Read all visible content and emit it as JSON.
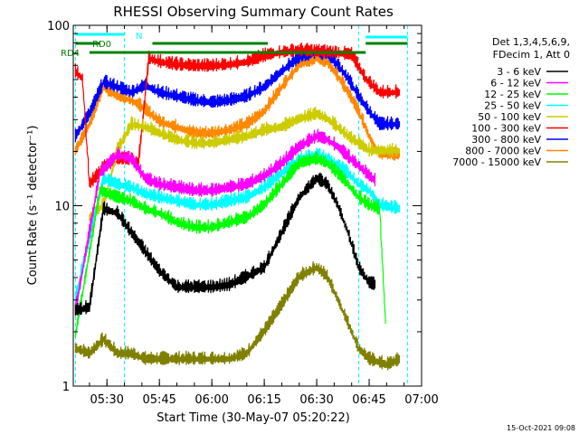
{
  "colors": {
    "background": "#ffffff",
    "axis": "#000000",
    "band_colors": [
      "#000000",
      "#ff00ff",
      "#00ff00",
      "#00ffff",
      "#cccc00",
      "#ff0000",
      "#0000ff",
      "#ff8800",
      "#808000"
    ],
    "bar_green": "#008000",
    "bar_cyan": "#00ffff",
    "event_line": "#00ffff"
  },
  "chart_data": {
    "type": "line",
    "title": "RHESSI Observing Summary Count Rates",
    "xlabel": "Start Time (30-May-07 05:20:22)",
    "ylabel": "Count Rate (s⁻¹ detector⁻¹)",
    "y_scale": "log",
    "ylim": [
      1,
      100
    ],
    "xlim": [
      "05:20:22",
      "07:00"
    ],
    "x_ticks": [
      "05:30",
      "05:45",
      "06:00",
      "06:15",
      "06:30",
      "06:45",
      "07:00"
    ],
    "y_ticks": [
      "1",
      "10",
      "100"
    ],
    "legend_header": [
      "Det 1,3,4,5,6,9,",
      "FDecim 1, Att 0"
    ],
    "legend_position": "right",
    "grid": false,
    "series": [
      {
        "name": "3 - 6 keV",
        "color": "#000000",
        "points": [
          [
            "05:21",
            2.6
          ],
          [
            "05:25",
            2.7
          ],
          [
            "05:29",
            9.5
          ],
          [
            "05:33",
            9
          ],
          [
            "05:37",
            7
          ],
          [
            "05:41",
            5.5
          ],
          [
            "05:45",
            4.3
          ],
          [
            "05:50",
            3.5
          ],
          [
            "05:55",
            3.5
          ],
          [
            "06:00",
            3.5
          ],
          [
            "06:05",
            3.6
          ],
          [
            "06:10",
            4
          ],
          [
            "06:15",
            4.5
          ],
          [
            "06:20",
            7
          ],
          [
            "06:25",
            11
          ],
          [
            "06:30",
            14
          ],
          [
            "06:33",
            13
          ],
          [
            "06:36",
            10
          ],
          [
            "06:39",
            7
          ],
          [
            "06:42",
            4.5
          ],
          [
            "06:45",
            3.7
          ],
          [
            "06:47",
            3.6
          ]
        ]
      },
      {
        "name": "6 - 12 keV",
        "color": "#ff00ff",
        "points": [
          [
            "05:21",
            2.6
          ],
          [
            "05:28",
            15
          ],
          [
            "05:33",
            19
          ],
          [
            "05:37",
            18
          ],
          [
            "05:41",
            14
          ],
          [
            "05:45",
            13
          ],
          [
            "05:50",
            12.5
          ],
          [
            "05:55",
            12
          ],
          [
            "06:00",
            12
          ],
          [
            "06:05",
            12.5
          ],
          [
            "06:10",
            13
          ],
          [
            "06:15",
            14.5
          ],
          [
            "06:20",
            17
          ],
          [
            "06:25",
            21
          ],
          [
            "06:30",
            24
          ],
          [
            "06:33",
            23
          ],
          [
            "06:36",
            21
          ],
          [
            "06:39",
            18.5
          ],
          [
            "06:42",
            16.5
          ],
          [
            "06:45",
            14.5
          ],
          [
            "06:47",
            13.5
          ]
        ]
      },
      {
        "name": "12 - 25 keV",
        "color": "#00ff00",
        "points": [
          [
            "05:21",
            1.9
          ],
          [
            "05:28",
            12
          ],
          [
            "05:33",
            11
          ],
          [
            "05:37",
            10.5
          ],
          [
            "05:41",
            9.5
          ],
          [
            "05:45",
            9
          ],
          [
            "05:50",
            8
          ],
          [
            "05:55",
            7.5
          ],
          [
            "06:00",
            7.5
          ],
          [
            "06:05",
            8
          ],
          [
            "06:10",
            8.5
          ],
          [
            "06:15",
            10
          ],
          [
            "06:20",
            13
          ],
          [
            "06:25",
            17
          ],
          [
            "06:30",
            18
          ],
          [
            "06:33",
            17
          ],
          [
            "06:36",
            15
          ],
          [
            "06:39",
            13
          ],
          [
            "06:42",
            11
          ],
          [
            "06:45",
            10
          ],
          [
            "06:48",
            9.5
          ],
          [
            "06:50",
            1.7
          ]
        ]
      },
      {
        "name": "25 - 50 keV",
        "color": "#00ffff",
        "points": [
          [
            "05:21",
            3.0
          ],
          [
            "05:23",
            4.5
          ],
          [
            "05:29",
            14
          ],
          [
            "05:33",
            13
          ],
          [
            "05:37",
            12.5
          ],
          [
            "05:41",
            11.5
          ],
          [
            "05:45",
            11
          ],
          [
            "05:50",
            10.5
          ],
          [
            "05:55",
            10
          ],
          [
            "06:00",
            10
          ],
          [
            "06:05",
            10.5
          ],
          [
            "06:10",
            11
          ],
          [
            "06:15",
            12.5
          ],
          [
            "06:20",
            15
          ],
          [
            "06:25",
            18
          ],
          [
            "06:30",
            19
          ],
          [
            "06:33",
            18
          ],
          [
            "06:36",
            16.5
          ],
          [
            "06:39",
            15
          ],
          [
            "06:42",
            13
          ],
          [
            "06:45",
            12
          ],
          [
            "06:48",
            10
          ],
          [
            "06:54",
            9.5
          ]
        ]
      },
      {
        "name": "50 - 100 keV",
        "color": "#cccc00",
        "points": [
          [
            "05:25",
            8.5
          ],
          [
            "05:29",
            10
          ],
          [
            "05:33",
            20
          ],
          [
            "05:37",
            28
          ],
          [
            "05:41",
            27
          ],
          [
            "05:45",
            25
          ],
          [
            "05:50",
            23
          ],
          [
            "05:55",
            22
          ],
          [
            "06:00",
            22
          ],
          [
            "06:05",
            23
          ],
          [
            "06:10",
            24
          ],
          [
            "06:15",
            26
          ],
          [
            "06:20",
            27
          ],
          [
            "06:25",
            30
          ],
          [
            "06:30",
            32
          ],
          [
            "06:33",
            30
          ],
          [
            "06:36",
            27
          ],
          [
            "06:39",
            24
          ],
          [
            "06:42",
            22
          ],
          [
            "06:45",
            20
          ],
          [
            "06:50",
            20
          ],
          [
            "06:54",
            20
          ]
        ]
      },
      {
        "name": "100 - 300 keV",
        "color": "#ff0000",
        "points": [
          [
            "05:21",
            55
          ],
          [
            "05:23",
            50
          ],
          [
            "05:25",
            13
          ],
          [
            "05:29",
            16
          ],
          [
            "05:33",
            18
          ],
          [
            "05:37",
            18
          ],
          [
            "05:39",
            17
          ],
          [
            "05:42",
            65
          ],
          [
            "05:45",
            62
          ],
          [
            "05:50",
            60
          ],
          [
            "05:55",
            59
          ],
          [
            "06:00",
            59
          ],
          [
            "06:05",
            60
          ],
          [
            "06:10",
            62
          ],
          [
            "06:14",
            66
          ],
          [
            "06:16",
            68
          ],
          [
            "06:20",
            70
          ],
          [
            "06:25",
            72
          ],
          [
            "06:30",
            71
          ],
          [
            "06:35",
            70
          ],
          [
            "06:40",
            68
          ],
          [
            "06:44",
            50
          ],
          [
            "06:48",
            42
          ],
          [
            "06:54",
            42
          ]
        ]
      },
      {
        "name": "300 - 800 keV",
        "color": "#0000ff",
        "points": [
          [
            "05:21",
            24
          ],
          [
            "05:25",
            32
          ],
          [
            "05:29",
            48
          ],
          [
            "05:33",
            45
          ],
          [
            "05:37",
            42
          ],
          [
            "05:41",
            46
          ],
          [
            "05:45",
            42
          ],
          [
            "05:50",
            40
          ],
          [
            "05:55",
            38
          ],
          [
            "06:00",
            37
          ],
          [
            "06:05",
            38
          ],
          [
            "06:10",
            40
          ],
          [
            "06:15",
            45
          ],
          [
            "06:20",
            55
          ],
          [
            "06:25",
            66
          ],
          [
            "06:30",
            70
          ],
          [
            "06:33",
            68
          ],
          [
            "06:36",
            60
          ],
          [
            "06:39",
            50
          ],
          [
            "06:42",
            40
          ],
          [
            "06:45",
            33
          ],
          [
            "06:48",
            28
          ],
          [
            "06:54",
            28
          ]
        ]
      },
      {
        "name": "800 - 7000 keV",
        "color": "#ff8800",
        "points": [
          [
            "05:21",
            20
          ],
          [
            "05:25",
            28
          ],
          [
            "05:29",
            45
          ],
          [
            "05:33",
            40
          ],
          [
            "05:37",
            38
          ],
          [
            "05:41",
            34
          ],
          [
            "05:45",
            29
          ],
          [
            "05:50",
            27
          ],
          [
            "05:55",
            25
          ],
          [
            "06:00",
            25
          ],
          [
            "06:05",
            26
          ],
          [
            "06:10",
            28
          ],
          [
            "06:15",
            33
          ],
          [
            "06:20",
            45
          ],
          [
            "06:25",
            60
          ],
          [
            "06:30",
            65
          ],
          [
            "06:33",
            62
          ],
          [
            "06:36",
            52
          ],
          [
            "06:39",
            42
          ],
          [
            "06:42",
            33
          ],
          [
            "06:45",
            24
          ],
          [
            "06:48",
            19
          ],
          [
            "06:54",
            19
          ]
        ]
      },
      {
        "name": "7000 - 15000 keV",
        "color": "#808000",
        "points": [
          [
            "05:21",
            1.6
          ],
          [
            "05:25",
            1.5
          ],
          [
            "05:29",
            1.8
          ],
          [
            "05:33",
            1.5
          ],
          [
            "05:37",
            1.5
          ],
          [
            "05:41",
            1.4
          ],
          [
            "05:45",
            1.4
          ],
          [
            "05:50",
            1.4
          ],
          [
            "05:55",
            1.4
          ],
          [
            "06:00",
            1.4
          ],
          [
            "06:05",
            1.4
          ],
          [
            "06:10",
            1.5
          ],
          [
            "06:15",
            2.0
          ],
          [
            "06:20",
            2.8
          ],
          [
            "06:25",
            4.0
          ],
          [
            "06:30",
            4.5
          ],
          [
            "06:33",
            4.0
          ],
          [
            "06:36",
            3.0
          ],
          [
            "06:39",
            2.2
          ],
          [
            "06:42",
            1.6
          ],
          [
            "06:45",
            1.4
          ],
          [
            "06:50",
            1.3
          ],
          [
            "06:54",
            1.4
          ]
        ]
      }
    ],
    "flag_bars": [
      {
        "label": "RD0",
        "color": "#00ffff",
        "start": "05:21",
        "end": "05:35"
      },
      {
        "label": "",
        "color": "#008000",
        "start": "05:21",
        "end": "05:28"
      },
      {
        "label": "",
        "color": "#008000",
        "start": "05:43",
        "end": "06:16"
      },
      {
        "label": "",
        "color": "#00ffff",
        "start": "06:44",
        "end": "06:56"
      },
      {
        "label": "",
        "color": "#008000",
        "start": "06:44",
        "end": "06:56"
      },
      {
        "label": "RD4",
        "color": "#008000",
        "start": "05:25",
        "end": "06:44"
      }
    ],
    "flag_labels": {
      "rd0": "RD0",
      "rd4": "RD4",
      "n": "N"
    },
    "event_lines": [
      "05:21",
      "05:35",
      "06:42",
      "06:56"
    ]
  },
  "footer": {
    "timestamp": "15-Oct-2021 09:08"
  }
}
